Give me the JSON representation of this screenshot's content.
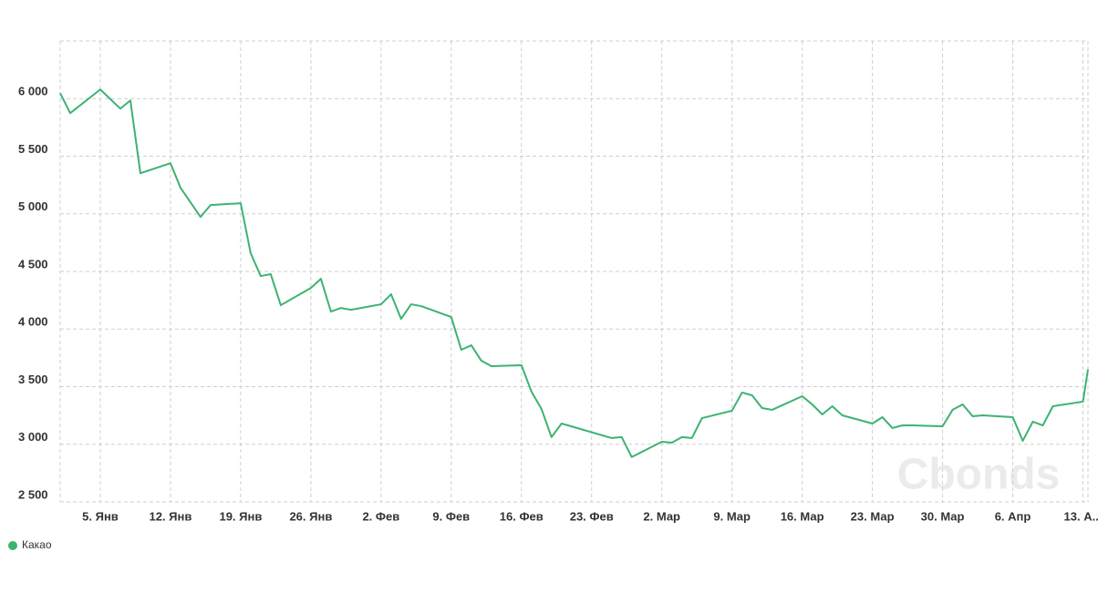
{
  "chart_data": {
    "type": "line",
    "watermark": "Cbonds",
    "xlim": [
      1,
      103.5
    ],
    "ylim": [
      2500,
      6500
    ],
    "xticks": [
      {
        "value": 5,
        "label": "5. Янв"
      },
      {
        "value": 12,
        "label": "12. Янв"
      },
      {
        "value": 19,
        "label": "19. Янв"
      },
      {
        "value": 26,
        "label": "26. Янв"
      },
      {
        "value": 33,
        "label": "2. Фев"
      },
      {
        "value": 40,
        "label": "9. Фев"
      },
      {
        "value": 47,
        "label": "16. Фев"
      },
      {
        "value": 54,
        "label": "23. Фев"
      },
      {
        "value": 61,
        "label": "2. Мар"
      },
      {
        "value": 68,
        "label": "9. Мар"
      },
      {
        "value": 75,
        "label": "16. Мар"
      },
      {
        "value": 82,
        "label": "23. Мар"
      },
      {
        "value": 89,
        "label": "30. Мар"
      },
      {
        "value": 96,
        "label": "6. Апр"
      },
      {
        "value": 103,
        "label": "13. А..."
      }
    ],
    "yticks": [
      {
        "value": 2500,
        "label": "2 500"
      },
      {
        "value": 3000,
        "label": "3 000"
      },
      {
        "value": 3500,
        "label": "3 500"
      },
      {
        "value": 4000,
        "label": "4 000"
      },
      {
        "value": 4500,
        "label": "4 500"
      },
      {
        "value": 5000,
        "label": "5 000"
      },
      {
        "value": 5500,
        "label": "5 500"
      },
      {
        "value": 6000,
        "label": "6 000"
      }
    ],
    "grid": true,
    "series": [
      {
        "name": "Какао",
        "color": "#3cb371",
        "x": [
          1,
          2,
          5,
          7,
          8,
          9,
          12,
          13,
          15,
          16,
          19,
          20,
          21,
          22,
          23,
          26,
          27,
          28,
          29,
          30,
          33,
          34,
          35,
          36,
          37,
          40,
          41,
          42,
          43,
          44,
          47,
          48,
          49,
          50,
          51,
          56,
          57,
          58,
          61,
          62,
          63,
          64,
          65,
          68,
          69,
          70,
          71,
          72,
          75,
          76,
          77,
          78,
          79,
          82,
          83,
          84,
          85,
          86,
          89,
          90,
          91,
          92,
          93,
          96,
          97,
          98,
          99,
          100,
          103,
          103.5
        ],
        "values": [
          6047,
          5874,
          6079,
          5913,
          5984,
          5352,
          5439,
          5226,
          4973,
          5076,
          5092,
          4657,
          4460,
          4476,
          4207,
          4357,
          4436,
          4152,
          4183,
          4167,
          4215,
          4302,
          4088,
          4215,
          4199,
          4104,
          3820,
          3859,
          3725,
          3678,
          3686,
          3457,
          3306,
          3062,
          3180,
          3054,
          3062,
          2889,
          3022,
          3014,
          3062,
          3054,
          3227,
          3291,
          3449,
          3425,
          3314,
          3299,
          3417,
          3346,
          3259,
          3330,
          3251,
          3180,
          3235,
          3141,
          3164,
          3164,
          3156,
          3299,
          3346,
          3243,
          3251,
          3235,
          3030,
          3196,
          3164,
          3330,
          3370,
          3650
        ]
      }
    ]
  }
}
